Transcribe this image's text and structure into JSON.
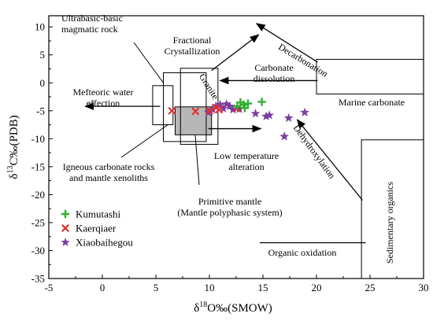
{
  "chart_data": {
    "type": "scatter",
    "title": "",
    "xlabel": {
      "prefix": "δ",
      "sup": "18",
      "rest": "O‰(SMOW)"
    },
    "ylabel": {
      "prefix": "δ",
      "sup": "13",
      "rest": "C‰(PDB)"
    },
    "xlim": [
      -5,
      30
    ],
    "ylim": [
      -35,
      12
    ],
    "xticks": [
      "-5",
      "0",
      "5",
      "10",
      "15",
      "20",
      "25",
      "30"
    ],
    "yticks": [
      "-35",
      "-30",
      "-25",
      "-20",
      "-15",
      "-10",
      "-5",
      "0",
      "5",
      "10"
    ],
    "legend_position": "bottom-left",
    "series": [
      {
        "name": "Kumutashi",
        "color": "#2fb02f",
        "marker": "plus",
        "points": [
          [
            12.6,
            -4.2
          ],
          [
            12.9,
            -3.5
          ],
          [
            13.2,
            -3.9
          ],
          [
            13.3,
            -4.5
          ],
          [
            13.6,
            -3.7
          ],
          [
            14.9,
            -3.4
          ]
        ]
      },
      {
        "name": "Kaerqiaer",
        "color": "#e03030",
        "marker": "x",
        "points": [
          [
            6.5,
            -5.0
          ],
          [
            8.7,
            -5.1
          ],
          [
            10.0,
            -5.0
          ],
          [
            10.6,
            -4.4
          ],
          [
            10.9,
            -4.8
          ],
          [
            12.6,
            -4.6
          ]
        ]
      },
      {
        "name": "Xiaobaihegou",
        "color": "#7a3fa0",
        "marker": "star",
        "points": [
          [
            9.9,
            -5.3
          ],
          [
            10.3,
            -4.8
          ],
          [
            10.6,
            -4.2
          ],
          [
            11.0,
            -3.9
          ],
          [
            11.3,
            -4.6
          ],
          [
            11.6,
            -3.8
          ],
          [
            11.9,
            -4.2
          ],
          [
            12.2,
            -4.8
          ],
          [
            12.8,
            -4.7
          ],
          [
            14.3,
            -5.5
          ],
          [
            15.3,
            -6.0
          ],
          [
            15.6,
            -5.8
          ],
          [
            17.4,
            -6.3
          ],
          [
            18.9,
            -5.3
          ],
          [
            17.0,
            -9.6
          ]
        ]
      }
    ],
    "annotations": {
      "ultrabasic": [
        "Ultrabasic-basic",
        "magmatic rock"
      ],
      "fractional": [
        "Fractional",
        "Crystallization"
      ],
      "decarbonation": "Decarbonation",
      "carbonate_dissolution": [
        "Carbonate",
        "dissolution"
      ],
      "granite": "Granite",
      "meteoric": [
        "Mefteoric water",
        "effection"
      ],
      "marine_carbonate": "Marine carbonate",
      "dehydroxylation": "Dehydroxylation",
      "low_temp": [
        "Low temperature",
        "alteration"
      ],
      "igneous": [
        "Igneous carbonate rocks",
        "and mantle xenoliths"
      ],
      "primitive_mantle": [
        "Primitive mantle",
        "(Mantle polyphasic system)"
      ],
      "sedimentary": "Sedimentary organics",
      "organic_oxidation": "Organic oxidation"
    },
    "colors": {
      "axis": "#000000",
      "box_fill": "#b7b7b7"
    }
  }
}
